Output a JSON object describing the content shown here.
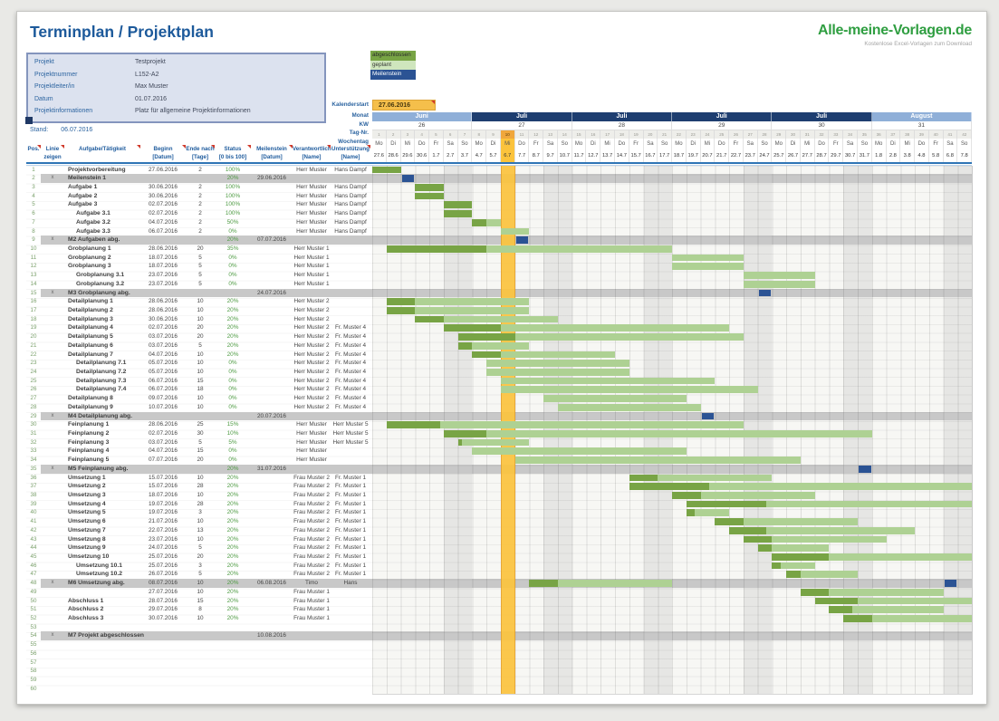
{
  "header": {
    "title": "Terminplan / Projektplan",
    "stand_label": "Stand:",
    "stand_value": "06.07.2016"
  },
  "logo": {
    "title": "Alle-meine-Vorlagen.de",
    "subtitle": "Kostenlose Excel-Vorlagen zum Download"
  },
  "project_info": [
    {
      "label": "Projekt",
      "value": "Testprojekt"
    },
    {
      "label": "Projektnummer",
      "value": "L152-A2"
    },
    {
      "label": "Projektleiter/in",
      "value": "Max Muster"
    },
    {
      "label": "Datum",
      "value": "01.07.2016"
    },
    {
      "label": "Projektinformationen",
      "value": "Platz für allgemeine Projektinformationen"
    }
  ],
  "legend": [
    {
      "label": "abgeschlossen",
      "color": "#78a445",
      "text": "#2a2a2a"
    },
    {
      "label": "geplant",
      "color": "#cfe6bd",
      "text": "#333333"
    },
    {
      "label": "Meilenstein",
      "color": "#2b5394",
      "text": "#ffffff"
    }
  ],
  "calendar": {
    "kalenderstart_label": "Kalenderstart",
    "kalenderstart_value": "27.06.2016",
    "row_labels": [
      "Monat",
      "KW",
      "Tag-Nr.",
      "Wochentag"
    ],
    "weeks": [
      {
        "month": "Juni",
        "kw": "26",
        "shade": "light"
      },
      {
        "month": "Juli",
        "kw": "27",
        "shade": "dark"
      },
      {
        "month": "Juli",
        "kw": "28",
        "shade": "dark"
      },
      {
        "month": "Juli",
        "kw": "29",
        "shade": "dark"
      },
      {
        "month": "Juli",
        "kw": "30",
        "shade": "dark"
      },
      {
        "month": "August",
        "kw": "31",
        "shade": "light"
      }
    ],
    "weekdays": [
      "Mo",
      "Di",
      "Mi",
      "Do",
      "Fr",
      "Sa",
      "So"
    ],
    "dates": [
      "27.6",
      "28.6",
      "29.6",
      "30.6",
      "1.7",
      "2.7",
      "3.7",
      "4.7",
      "5.7",
      "6.7",
      "7.7",
      "8.7",
      "9.7",
      "10.7",
      "11.7",
      "12.7",
      "13.7",
      "14.7",
      "15.7",
      "16.7",
      "17.7",
      "18.7",
      "19.7",
      "20.7",
      "21.7",
      "22.7",
      "23.7",
      "24.7",
      "25.7",
      "26.7",
      "27.7",
      "28.7",
      "29.7",
      "30.7",
      "31.7",
      "1.8",
      "2.8",
      "3.8",
      "4.8",
      "5.8",
      "6.8",
      "7.8"
    ],
    "tag_numbers": [
      1,
      2,
      3,
      4,
      5,
      6,
      7,
      8,
      9,
      10,
      11,
      12,
      13,
      14,
      15,
      16,
      17,
      18,
      19,
      20,
      21,
      22,
      23,
      24,
      25,
      26,
      27,
      28,
      29,
      30,
      31,
      32,
      33,
      34,
      35,
      36,
      37,
      38,
      39,
      40,
      41,
      42
    ],
    "today_index": 9
  },
  "table_headers": [
    {
      "line1": "Pos.",
      "line2": ""
    },
    {
      "line1": "Linie",
      "line2": "zeigen"
    },
    {
      "line1": "Aufgabe/Tätigkeit",
      "line2": ""
    },
    {
      "line1": "Beginn",
      "line2": "[Datum]"
    },
    {
      "line1": "Ende nach",
      "line2": "[Tage]"
    },
    {
      "line1": "Status",
      "line2": "[0 bis 100]"
    },
    {
      "line1": "Meilenstein",
      "line2": "[Datum]"
    },
    {
      "line1": "Verantwortlich",
      "line2": "[Name]"
    },
    {
      "line1": "Unterstützung",
      "line2": "[Name]"
    }
  ],
  "rows": [
    {
      "pos": "1",
      "type": "task",
      "name": "Projektvorbereitung",
      "indent": 0,
      "begin": "27.06.2016",
      "dauer": "2",
      "status": "100%",
      "meilenstein": "",
      "verantwortlich": "Herr Muster",
      "unterstuetzung": "Hans Dampf"
    },
    {
      "pos": "2",
      "type": "milestone",
      "linie": "x",
      "name": "Meilenstein 1",
      "indent": 0,
      "begin": "",
      "dauer": "",
      "status": "20%",
      "meilenstein": "29.06.2016",
      "verantwortlich": "",
      "unterstuetzung": ""
    },
    {
      "pos": "3",
      "type": "task",
      "name": "Aufgabe 1",
      "indent": 0,
      "begin": "30.06.2016",
      "dauer": "2",
      "status": "100%",
      "meilenstein": "",
      "verantwortlich": "Herr Muster",
      "unterstuetzung": "Hans Dampf"
    },
    {
      "pos": "4",
      "type": "task",
      "name": "Aufgabe 2",
      "indent": 0,
      "begin": "30.06.2016",
      "dauer": "2",
      "status": "100%",
      "meilenstein": "",
      "verantwortlich": "Herr Muster",
      "unterstuetzung": "Hans Dampf"
    },
    {
      "pos": "5",
      "type": "task",
      "name": "Aufgabe 3",
      "indent": 0,
      "begin": "02.07.2016",
      "dauer": "2",
      "status": "100%",
      "meilenstein": "",
      "verantwortlich": "Herr Muster",
      "unterstuetzung": "Hans Dampf"
    },
    {
      "pos": "6",
      "type": "task",
      "name": "Aufgabe 3.1",
      "indent": 1,
      "begin": "02.07.2016",
      "dauer": "2",
      "status": "100%",
      "meilenstein": "",
      "verantwortlich": "Herr Muster",
      "unterstuetzung": "Hans Dampf"
    },
    {
      "pos": "7",
      "type": "task",
      "name": "Aufgabe 3.2",
      "indent": 1,
      "begin": "04.07.2016",
      "dauer": "2",
      "status": "50%",
      "meilenstein": "",
      "verantwortlich": "Herr Muster",
      "unterstuetzung": "Hans Dampf"
    },
    {
      "pos": "8",
      "type": "task",
      "name": "Aufgabe 3.3",
      "indent": 1,
      "begin": "06.07.2016",
      "dauer": "2",
      "status": "0%",
      "meilenstein": "",
      "verantwortlich": "Herr Muster",
      "unterstuetzung": "Hans Dampf"
    },
    {
      "pos": "9",
      "type": "milestone",
      "linie": "x",
      "name": "M2 Aufgaben abg.",
      "indent": 0,
      "begin": "",
      "dauer": "",
      "status": "20%",
      "meilenstein": "07.07.2016",
      "verantwortlich": "",
      "unterstuetzung": ""
    },
    {
      "pos": "10",
      "type": "task",
      "name": "Grobplanung 1",
      "indent": 0,
      "begin": "28.06.2016",
      "dauer": "20",
      "status": "35%",
      "meilenstein": "",
      "verantwortlich": "Herr Muster 1",
      "unterstuetzung": ""
    },
    {
      "pos": "11",
      "type": "task",
      "name": "Grobplanung 2",
      "indent": 0,
      "begin": "18.07.2016",
      "dauer": "5",
      "status": "0%",
      "meilenstein": "",
      "verantwortlich": "Herr Muster 1",
      "unterstuetzung": ""
    },
    {
      "pos": "12",
      "type": "task",
      "name": "Grobplanung 3",
      "indent": 0,
      "begin": "18.07.2016",
      "dauer": "5",
      "status": "0%",
      "meilenstein": "",
      "verantwortlich": "Herr Muster 1",
      "unterstuetzung": ""
    },
    {
      "pos": "13",
      "type": "task",
      "name": "Grobplanung 3.1",
      "indent": 1,
      "begin": "23.07.2016",
      "dauer": "5",
      "status": "0%",
      "meilenstein": "",
      "verantwortlich": "Herr Muster 1",
      "unterstuetzung": ""
    },
    {
      "pos": "14",
      "type": "task",
      "name": "Grobplanung 3.2",
      "indent": 1,
      "begin": "23.07.2016",
      "dauer": "5",
      "status": "0%",
      "meilenstein": "",
      "verantwortlich": "Herr Muster 1",
      "unterstuetzung": ""
    },
    {
      "pos": "15",
      "type": "milestone",
      "linie": "x",
      "name": "M3 Grobplanung abg.",
      "indent": 0,
      "begin": "",
      "dauer": "",
      "status": "",
      "meilenstein": "24.07.2016",
      "verantwortlich": "",
      "unterstuetzung": ""
    },
    {
      "pos": "16",
      "type": "task",
      "name": "Detailplanung 1",
      "indent": 0,
      "begin": "28.06.2016",
      "dauer": "10",
      "status": "20%",
      "meilenstein": "",
      "verantwortlich": "Herr Muster 2",
      "unterstuetzung": ""
    },
    {
      "pos": "17",
      "type": "task",
      "name": "Detailplanung 2",
      "indent": 0,
      "begin": "28.06.2016",
      "dauer": "10",
      "status": "20%",
      "meilenstein": "",
      "verantwortlich": "Herr Muster 2",
      "unterstuetzung": ""
    },
    {
      "pos": "18",
      "type": "task",
      "name": "Detailplanung 3",
      "indent": 0,
      "begin": "30.06.2016",
      "dauer": "10",
      "status": "20%",
      "meilenstein": "",
      "verantwortlich": "Herr Muster 2",
      "unterstuetzung": ""
    },
    {
      "pos": "19",
      "type": "task",
      "name": "Detailplanung 4",
      "indent": 0,
      "begin": "02.07.2016",
      "dauer": "20",
      "status": "20%",
      "meilenstein": "",
      "verantwortlich": "Herr Muster 2",
      "unterstuetzung": "Fr. Muster 4"
    },
    {
      "pos": "20",
      "type": "task",
      "name": "Detailplanung 5",
      "indent": 0,
      "begin": "03.07.2016",
      "dauer": "20",
      "status": "20%",
      "meilenstein": "",
      "verantwortlich": "Herr Muster 2",
      "unterstuetzung": "Fr. Muster 4"
    },
    {
      "pos": "21",
      "type": "task",
      "name": "Detailplanung 6",
      "indent": 0,
      "begin": "03.07.2016",
      "dauer": "5",
      "status": "20%",
      "meilenstein": "",
      "verantwortlich": "Herr Muster 2",
      "unterstuetzung": "Fr. Muster 4"
    },
    {
      "pos": "22",
      "type": "task",
      "name": "Detailplanung 7",
      "indent": 0,
      "begin": "04.07.2016",
      "dauer": "10",
      "status": "20%",
      "meilenstein": "",
      "verantwortlich": "Herr Muster 2",
      "unterstuetzung": "Fr. Muster 4"
    },
    {
      "pos": "23",
      "type": "task",
      "name": "Detailplanung 7.1",
      "indent": 1,
      "begin": "05.07.2016",
      "dauer": "10",
      "status": "0%",
      "meilenstein": "",
      "verantwortlich": "Herr Muster 2",
      "unterstuetzung": "Fr. Muster 4"
    },
    {
      "pos": "24",
      "type": "task",
      "name": "Detailplanung 7.2",
      "indent": 1,
      "begin": "05.07.2016",
      "dauer": "10",
      "status": "0%",
      "meilenstein": "",
      "verantwortlich": "Herr Muster 2",
      "unterstuetzung": "Fr. Muster 4"
    },
    {
      "pos": "25",
      "type": "task",
      "name": "Detailplanung 7.3",
      "indent": 1,
      "begin": "06.07.2016",
      "dauer": "15",
      "status": "0%",
      "meilenstein": "",
      "verantwortlich": "Herr Muster 2",
      "unterstuetzung": "Fr. Muster 4"
    },
    {
      "pos": "26",
      "type": "task",
      "name": "Detailplanung 7.4",
      "indent": 1,
      "begin": "06.07.2016",
      "dauer": "18",
      "status": "0%",
      "meilenstein": "",
      "verantwortlich": "Herr Muster 2",
      "unterstuetzung": "Fr. Muster 4"
    },
    {
      "pos": "27",
      "type": "task",
      "name": "Detailplanung 8",
      "indent": 0,
      "begin": "09.07.2016",
      "dauer": "10",
      "status": "0%",
      "meilenstein": "",
      "verantwortlich": "Herr Muster 2",
      "unterstuetzung": "Fr. Muster 4"
    },
    {
      "pos": "28",
      "type": "task",
      "name": "Detailplanung 9",
      "indent": 0,
      "begin": "10.07.2016",
      "dauer": "10",
      "status": "0%",
      "meilenstein": "",
      "verantwortlich": "Herr Muster 2",
      "unterstuetzung": "Fr. Muster 4"
    },
    {
      "pos": "29",
      "type": "milestone",
      "linie": "x",
      "name": "M4 Detailplanung abg.",
      "indent": 0,
      "begin": "",
      "dauer": "",
      "status": "",
      "meilenstein": "20.07.2016",
      "verantwortlich": "",
      "unterstuetzung": ""
    },
    {
      "pos": "30",
      "type": "task",
      "name": "Feinplanung 1",
      "indent": 0,
      "begin": "28.06.2016",
      "dauer": "25",
      "status": "15%",
      "meilenstein": "",
      "verantwortlich": "Herr Muster",
      "unterstuetzung": "Herr Muster 5"
    },
    {
      "pos": "31",
      "type": "task",
      "name": "Feinplanung 2",
      "indent": 0,
      "begin": "02.07.2016",
      "dauer": "30",
      "status": "10%",
      "meilenstein": "",
      "verantwortlich": "Herr Muster",
      "unterstuetzung": "Herr Muster 5"
    },
    {
      "pos": "32",
      "type": "task",
      "name": "Feinplanung 3",
      "indent": 0,
      "begin": "03.07.2016",
      "dauer": "5",
      "status": "5%",
      "meilenstein": "",
      "verantwortlich": "Herr Muster",
      "unterstuetzung": "Herr Muster 5"
    },
    {
      "pos": "33",
      "type": "task",
      "name": "Feinplanung 4",
      "indent": 0,
      "begin": "04.07.2016",
      "dauer": "15",
      "status": "0%",
      "meilenstein": "",
      "verantwortlich": "Herr Muster",
      "unterstuetzung": ""
    },
    {
      "pos": "34",
      "type": "task",
      "name": "Feinplanung 5",
      "indent": 0,
      "begin": "07.07.2016",
      "dauer": "20",
      "status": "0%",
      "meilenstein": "",
      "verantwortlich": "Herr Muster",
      "unterstuetzung": ""
    },
    {
      "pos": "35",
      "type": "milestone",
      "linie": "x",
      "name": "M5 Feinplanung abg.",
      "indent": 0,
      "begin": "",
      "dauer": "",
      "status": "20%",
      "meilenstein": "31.07.2016",
      "verantwortlich": "",
      "unterstuetzung": ""
    },
    {
      "pos": "36",
      "type": "task",
      "name": "Umsetzung 1",
      "indent": 0,
      "begin": "15.07.2016",
      "dauer": "10",
      "status": "20%",
      "meilenstein": "",
      "verantwortlich": "Frau Muster 2",
      "unterstuetzung": "Fr. Muster 1"
    },
    {
      "pos": "37",
      "type": "task",
      "name": "Umsetzung 2",
      "indent": 0,
      "begin": "15.07.2016",
      "dauer": "28",
      "status": "20%",
      "meilenstein": "",
      "verantwortlich": "Frau Muster 2",
      "unterstuetzung": "Fr. Muster 1"
    },
    {
      "pos": "38",
      "type": "task",
      "name": "Umsetzung 3",
      "indent": 0,
      "begin": "18.07.2016",
      "dauer": "10",
      "status": "20%",
      "meilenstein": "",
      "verantwortlich": "Frau Muster 2",
      "unterstuetzung": "Fr. Muster 1"
    },
    {
      "pos": "39",
      "type": "task",
      "name": "Umsetzung 4",
      "indent": 0,
      "begin": "19.07.2016",
      "dauer": "28",
      "status": "20%",
      "meilenstein": "",
      "verantwortlich": "Frau Muster 2",
      "unterstuetzung": "Fr. Muster 1"
    },
    {
      "pos": "40",
      "type": "task",
      "name": "Umsetzung 5",
      "indent": 0,
      "begin": "19.07.2016",
      "dauer": "3",
      "status": "20%",
      "meilenstein": "",
      "verantwortlich": "Frau Muster 2",
      "unterstuetzung": "Fr. Muster 1"
    },
    {
      "pos": "41",
      "type": "task",
      "name": "Umsetzung 6",
      "indent": 0,
      "begin": "21.07.2016",
      "dauer": "10",
      "status": "20%",
      "meilenstein": "",
      "verantwortlich": "Frau Muster 2",
      "unterstuetzung": "Fr. Muster 1"
    },
    {
      "pos": "42",
      "type": "task",
      "name": "Umsetzung 7",
      "indent": 0,
      "begin": "22.07.2016",
      "dauer": "13",
      "status": "20%",
      "meilenstein": "",
      "verantwortlich": "Frau Muster 2",
      "unterstuetzung": "Fr. Muster 1"
    },
    {
      "pos": "43",
      "type": "task",
      "name": "Umsetzung 8",
      "indent": 0,
      "begin": "23.07.2016",
      "dauer": "10",
      "status": "20%",
      "meilenstein": "",
      "verantwortlich": "Frau Muster 2",
      "unterstuetzung": "Fr. Muster 1"
    },
    {
      "pos": "44",
      "type": "task",
      "name": "Umsetzung 9",
      "indent": 0,
      "begin": "24.07.2016",
      "dauer": "5",
      "status": "20%",
      "meilenstein": "",
      "verantwortlich": "Frau Muster 2",
      "unterstuetzung": "Fr. Muster 1"
    },
    {
      "pos": "45",
      "type": "task",
      "name": "Umsetzung 10",
      "indent": 0,
      "begin": "25.07.2016",
      "dauer": "20",
      "status": "20%",
      "meilenstein": "",
      "verantwortlich": "Frau Muster 2",
      "unterstuetzung": "Fr. Muster 1"
    },
    {
      "pos": "46",
      "type": "task",
      "name": "Umsetzung 10.1",
      "indent": 1,
      "begin": "25.07.2016",
      "dauer": "3",
      "status": "20%",
      "meilenstein": "",
      "verantwortlich": "Frau Muster 2",
      "unterstuetzung": "Fr. Muster 1"
    },
    {
      "pos": "47",
      "type": "task",
      "name": "Umsetzung 10.2",
      "indent": 1,
      "begin": "26.07.2016",
      "dauer": "5",
      "status": "20%",
      "meilenstein": "",
      "verantwortlich": "Frau Muster 2",
      "unterstuetzung": "Fr. Muster 1"
    },
    {
      "pos": "48",
      "type": "milestone",
      "linie": "x",
      "name": "M6 Umsetzung abg.",
      "indent": 0,
      "begin": "08.07.2016",
      "dauer": "10",
      "status": "20%",
      "meilenstein": "06.08.2016",
      "verantwortlich": "Timo",
      "unterstuetzung": "Hans"
    },
    {
      "pos": "49",
      "type": "task",
      "name": "",
      "indent": 0,
      "begin": "27.07.2016",
      "dauer": "10",
      "status": "20%",
      "meilenstein": "",
      "verantwortlich": "Frau Muster 1",
      "unterstuetzung": ""
    },
    {
      "pos": "50",
      "type": "task",
      "name": "Abschluss 1",
      "indent": 0,
      "begin": "28.07.2016",
      "dauer": "15",
      "status": "20%",
      "meilenstein": "",
      "verantwortlich": "Frau Muster 1",
      "unterstuetzung": ""
    },
    {
      "pos": "51",
      "type": "task",
      "name": "Abschluss 2",
      "indent": 0,
      "begin": "29.07.2016",
      "dauer": "8",
      "status": "20%",
      "meilenstein": "",
      "verantwortlich": "Frau Muster 1",
      "unterstuetzung": ""
    },
    {
      "pos": "52",
      "type": "task",
      "name": "Abschluss 3",
      "indent": 0,
      "begin": "30.07.2016",
      "dauer": "10",
      "status": "20%",
      "meilenstein": "",
      "verantwortlich": "Frau Muster 1",
      "unterstuetzung": ""
    },
    {
      "pos": "53",
      "type": "empty"
    },
    {
      "pos": "54",
      "type": "milestone",
      "linie": "x",
      "name": "M7 Projekt abgeschlossen",
      "indent": 0,
      "begin": "",
      "dauer": "",
      "status": "",
      "meilenstein": "10.08.2016",
      "verantwortlich": "",
      "unterstuetzung": ""
    },
    {
      "pos": "55",
      "type": "empty"
    },
    {
      "pos": "56",
      "type": "empty"
    },
    {
      "pos": "57",
      "type": "empty"
    },
    {
      "pos": "58",
      "type": "empty"
    },
    {
      "pos": "59",
      "type": "empty"
    },
    {
      "pos": "60",
      "type": "empty"
    }
  ],
  "colors": {
    "accent_blue": "#1d5a9b",
    "done_green": "#78a445",
    "planned_green": "#aed193",
    "milestone_blue": "#2b5394",
    "today_yellow": "#fcc43e",
    "month_dark": "#1e3e70",
    "month_light": "#8fafd8",
    "gray_row": "#c8c8c8",
    "kalenderstart_bg": "#f5bf4b",
    "logo_green": "#2f9e41"
  }
}
